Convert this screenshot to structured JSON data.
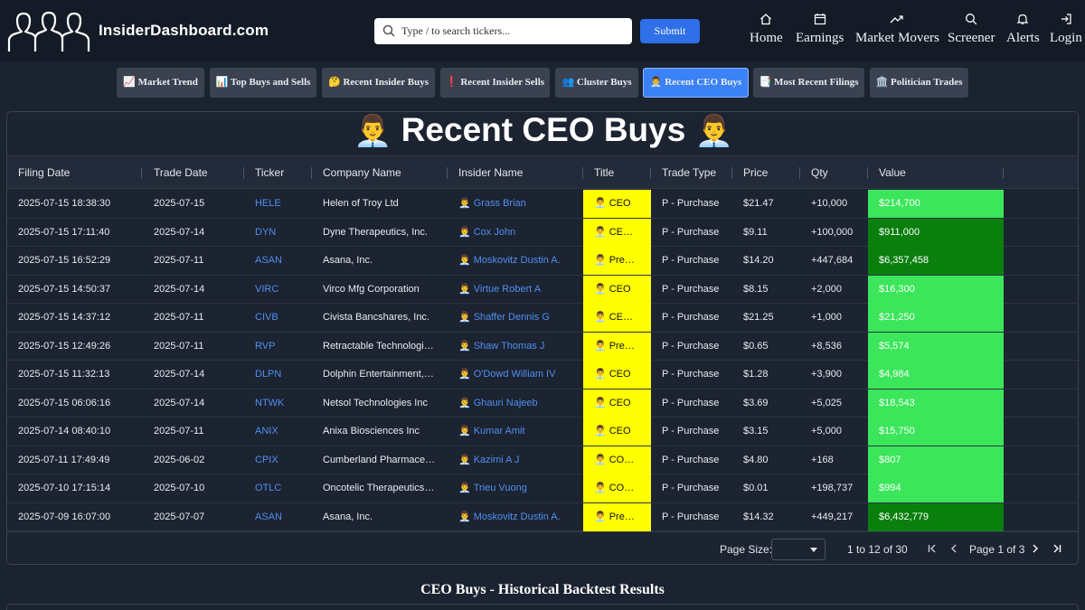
{
  "brand": "InsiderDashboard.com",
  "search": {
    "placeholder": "Type / to search tickers...",
    "submit_label": "Submit"
  },
  "nav": [
    {
      "label": "Home",
      "icon": "home-icon"
    },
    {
      "label": "Earnings",
      "icon": "calendar-icon"
    },
    {
      "label": "Market Movers",
      "icon": "trending-up-icon"
    },
    {
      "label": "Screener",
      "icon": "search-icon"
    },
    {
      "label": "Alerts",
      "icon": "bell-icon"
    },
    {
      "label": "Login",
      "icon": "login-icon"
    }
  ],
  "tabs": [
    {
      "label": "📈 Market Trend"
    },
    {
      "label": "📊 Top Buys and Sells"
    },
    {
      "label": "🤔 Recent Insider Buys"
    },
    {
      "label": "❗ Recent Insider Sells"
    },
    {
      "label": "👥 Cluster Buys"
    },
    {
      "label": "👨‍💼 Recent CEO Buys",
      "active": true
    },
    {
      "label": "📑 Most Recent Filings"
    },
    {
      "label": "🏛️ Politician Trades"
    }
  ],
  "page_title": {
    "emoji": "👨‍💼",
    "text": "Recent CEO Buys"
  },
  "table": {
    "columns": [
      "Filing Date",
      "Trade Date",
      "Ticker",
      "Company Name",
      "Insider Name",
      "Title",
      "Trade Type",
      "Price",
      "Qty",
      "Value"
    ],
    "insider_emoji": "👨‍💼",
    "rows": [
      {
        "filing_date": "2025-07-15 18:38:30",
        "trade_date": "2025-07-15",
        "ticker": "HELE",
        "company": "Helen of Troy Ltd",
        "insider": "Grass Brian",
        "title": "CEO",
        "trade_type": "P - Purchase",
        "price": "$21.47",
        "qty": "+10,000",
        "value": "$214,700",
        "value_color": "#3be65a"
      },
      {
        "filing_date": "2025-07-15 17:11:40",
        "trade_date": "2025-07-14",
        "ticker": "DYN",
        "company": "Dyne Therapeutics, Inc.",
        "insider": "Cox John",
        "title": "CE…",
        "trade_type": "P - Purchase",
        "price": "$9.11",
        "qty": "+100,000",
        "value": "$911,000",
        "value_color": "#0a7f0e"
      },
      {
        "filing_date": "2025-07-15 16:52:29",
        "trade_date": "2025-07-11",
        "ticker": "ASAN",
        "company": "Asana, Inc.",
        "insider": "Moskovitz Dustin A.",
        "title": "Pre…",
        "trade_type": "P - Purchase",
        "price": "$14.20",
        "qty": "+447,684",
        "value": "$6,357,458",
        "value_color": "#0a7f0e"
      },
      {
        "filing_date": "2025-07-15 14:50:37",
        "trade_date": "2025-07-14",
        "ticker": "VIRC",
        "company": "Virco Mfg Corporation",
        "insider": "Virtue Robert A",
        "title": "CEO",
        "trade_type": "P - Purchase",
        "price": "$8.15",
        "qty": "+2,000",
        "value": "$16,300",
        "value_color": "#3be65a"
      },
      {
        "filing_date": "2025-07-15 14:37:12",
        "trade_date": "2025-07-11",
        "ticker": "CIVB",
        "company": "Civista Bancshares, Inc.",
        "insider": "Shaffer Dennis G",
        "title": "CE…",
        "trade_type": "P - Purchase",
        "price": "$21.25",
        "qty": "+1,000",
        "value": "$21,250",
        "value_color": "#3be65a"
      },
      {
        "filing_date": "2025-07-15 12:49:26",
        "trade_date": "2025-07-11",
        "ticker": "RVP",
        "company": "Retractable Technologie…",
        "insider": "Shaw Thomas J",
        "title": "Pre…",
        "trade_type": "P - Purchase",
        "price": "$0.65",
        "qty": "+8,536",
        "value": "$5,574",
        "value_color": "#3be65a"
      },
      {
        "filing_date": "2025-07-15 11:32:13",
        "trade_date": "2025-07-14",
        "ticker": "DLPN",
        "company": "Dolphin Entertainment, I…",
        "insider": "O'Dowd William IV",
        "title": "CEO",
        "trade_type": "P - Purchase",
        "price": "$1.28",
        "qty": "+3,900",
        "value": "$4,984",
        "value_color": "#3be65a"
      },
      {
        "filing_date": "2025-07-15 06:06:16",
        "trade_date": "2025-07-14",
        "ticker": "NTWK",
        "company": "Netsol Technologies Inc",
        "insider": "Ghauri Najeeb",
        "title": "CEO",
        "trade_type": "P - Purchase",
        "price": "$3.69",
        "qty": "+5,025",
        "value": "$18,543",
        "value_color": "#3be65a"
      },
      {
        "filing_date": "2025-07-14 08:40:10",
        "trade_date": "2025-07-11",
        "ticker": "ANIX",
        "company": "Anixa Biosciences Inc",
        "insider": "Kumar Amit",
        "title": "CEO",
        "trade_type": "P - Purchase",
        "price": "$3.15",
        "qty": "+5,000",
        "value": "$15,750",
        "value_color": "#3be65a"
      },
      {
        "filing_date": "2025-07-11 17:49:49",
        "trade_date": "2025-06-02",
        "ticker": "CPIX",
        "company": "Cumberland Pharmaceu…",
        "insider": "Kazimi A J",
        "title": "CO…",
        "trade_type": "P - Purchase",
        "price": "$4.80",
        "qty": "+168",
        "value": "$807",
        "value_color": "#3be65a"
      },
      {
        "filing_date": "2025-07-10 17:15:14",
        "trade_date": "2025-07-10",
        "ticker": "OTLC",
        "company": "Oncotelic Therapeutics, …",
        "insider": "Trieu Vuong",
        "title": "CO…",
        "trade_type": "P - Purchase",
        "price": "$0.01",
        "qty": "+198,737",
        "value": "$994",
        "value_color": "#3be65a"
      },
      {
        "filing_date": "2025-07-09 16:07:00",
        "trade_date": "2025-07-07",
        "ticker": "ASAN",
        "company": "Asana, Inc.",
        "insider": "Moskovitz Dustin A.",
        "title": "Pre…",
        "trade_type": "P - Purchase",
        "price": "$14.32",
        "qty": "+449,217",
        "value": "$6,432,779",
        "value_color": "#0a7f0e"
      }
    ]
  },
  "pagination": {
    "page_size_label": "Page Size:",
    "range_text": "1 to 12 of 30",
    "page_text": "Page 1 of 3"
  },
  "backtest_title": "CEO Buys - Historical Backtest Results",
  "colors": {
    "accent": "#3b82f6",
    "title_highlight": "#ffff00",
    "link": "#4f8ff0"
  }
}
